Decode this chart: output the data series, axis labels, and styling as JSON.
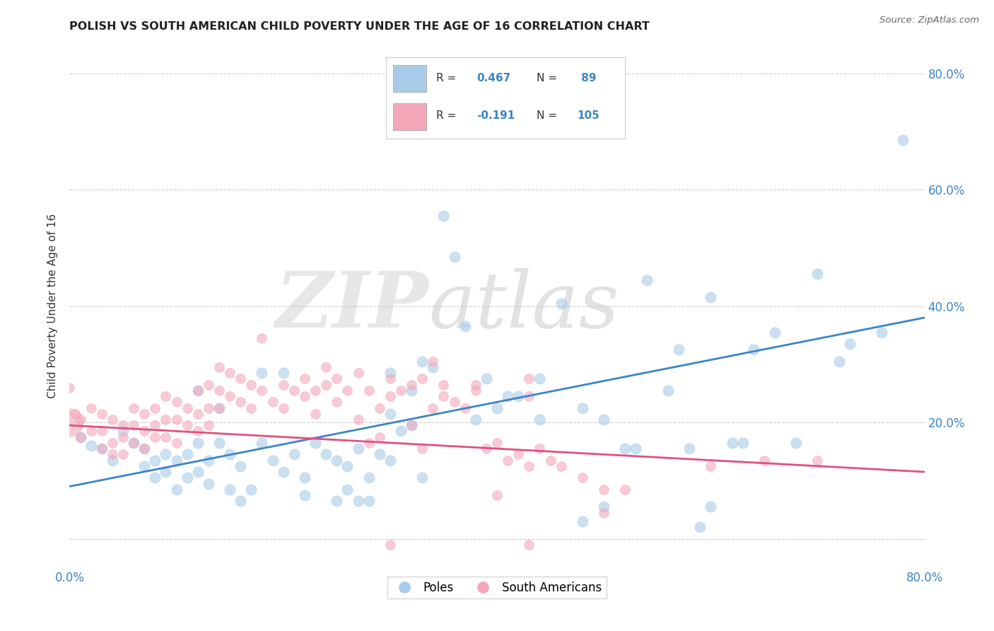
{
  "title": "POLISH VS SOUTH AMERICAN CHILD POVERTY UNDER THE AGE OF 16 CORRELATION CHART",
  "source": "Source: ZipAtlas.com",
  "ylabel": "Child Poverty Under the Age of 16",
  "xlim": [
    0.0,
    0.8
  ],
  "ylim": [
    -0.05,
    0.85
  ],
  "yticks": [
    0.0,
    0.2,
    0.4,
    0.6,
    0.8
  ],
  "xticks": [
    0.0,
    0.1,
    0.2,
    0.3,
    0.4,
    0.5,
    0.6,
    0.7,
    0.8
  ],
  "blue_color": "#a8cce8",
  "pink_color": "#f4a7b9",
  "blue_line_color": "#3a85c7",
  "pink_line_color": "#e05080",
  "legend_text_color": "#3a85c7",
  "poles_label": "Poles",
  "sa_label": "South Americans",
  "watermark_zip": "ZIP",
  "watermark_atlas": "atlas",
  "blue_trend_y0": 0.09,
  "blue_trend_y1": 0.38,
  "pink_trend_y0": 0.195,
  "pink_trend_y1": 0.115,
  "blue_dots": [
    [
      0.01,
      0.175
    ],
    [
      0.02,
      0.16
    ],
    [
      0.03,
      0.155
    ],
    [
      0.04,
      0.135
    ],
    [
      0.05,
      0.185
    ],
    [
      0.06,
      0.165
    ],
    [
      0.07,
      0.155
    ],
    [
      0.07,
      0.125
    ],
    [
      0.08,
      0.135
    ],
    [
      0.08,
      0.105
    ],
    [
      0.09,
      0.145
    ],
    [
      0.09,
      0.115
    ],
    [
      0.1,
      0.135
    ],
    [
      0.1,
      0.085
    ],
    [
      0.11,
      0.145
    ],
    [
      0.11,
      0.105
    ],
    [
      0.12,
      0.165
    ],
    [
      0.12,
      0.115
    ],
    [
      0.12,
      0.255
    ],
    [
      0.13,
      0.135
    ],
    [
      0.13,
      0.095
    ],
    [
      0.14,
      0.225
    ],
    [
      0.14,
      0.165
    ],
    [
      0.15,
      0.145
    ],
    [
      0.15,
      0.085
    ],
    [
      0.16,
      0.125
    ],
    [
      0.16,
      0.065
    ],
    [
      0.17,
      0.085
    ],
    [
      0.18,
      0.165
    ],
    [
      0.18,
      0.285
    ],
    [
      0.19,
      0.135
    ],
    [
      0.2,
      0.285
    ],
    [
      0.2,
      0.115
    ],
    [
      0.21,
      0.145
    ],
    [
      0.22,
      0.105
    ],
    [
      0.22,
      0.075
    ],
    [
      0.23,
      0.165
    ],
    [
      0.24,
      0.145
    ],
    [
      0.25,
      0.135
    ],
    [
      0.25,
      0.065
    ],
    [
      0.26,
      0.125
    ],
    [
      0.26,
      0.085
    ],
    [
      0.27,
      0.155
    ],
    [
      0.27,
      0.065
    ],
    [
      0.28,
      0.105
    ],
    [
      0.28,
      0.065
    ],
    [
      0.29,
      0.145
    ],
    [
      0.3,
      0.285
    ],
    [
      0.3,
      0.215
    ],
    [
      0.3,
      0.135
    ],
    [
      0.31,
      0.185
    ],
    [
      0.32,
      0.255
    ],
    [
      0.32,
      0.195
    ],
    [
      0.33,
      0.305
    ],
    [
      0.33,
      0.105
    ],
    [
      0.34,
      0.295
    ],
    [
      0.35,
      0.555
    ],
    [
      0.36,
      0.485
    ],
    [
      0.37,
      0.365
    ],
    [
      0.38,
      0.205
    ],
    [
      0.39,
      0.275
    ],
    [
      0.4,
      0.225
    ],
    [
      0.41,
      0.245
    ],
    [
      0.42,
      0.245
    ],
    [
      0.44,
      0.205
    ],
    [
      0.44,
      0.275
    ],
    [
      0.46,
      0.405
    ],
    [
      0.48,
      0.225
    ],
    [
      0.5,
      0.205
    ],
    [
      0.52,
      0.155
    ],
    [
      0.53,
      0.155
    ],
    [
      0.54,
      0.445
    ],
    [
      0.56,
      0.255
    ],
    [
      0.57,
      0.325
    ],
    [
      0.58,
      0.155
    ],
    [
      0.6,
      0.415
    ],
    [
      0.62,
      0.165
    ],
    [
      0.63,
      0.165
    ],
    [
      0.64,
      0.325
    ],
    [
      0.66,
      0.355
    ],
    [
      0.68,
      0.165
    ],
    [
      0.7,
      0.455
    ],
    [
      0.72,
      0.305
    ],
    [
      0.73,
      0.335
    ],
    [
      0.76,
      0.355
    ],
    [
      0.78,
      0.685
    ],
    [
      0.59,
      0.02
    ],
    [
      0.6,
      0.055
    ],
    [
      0.5,
      0.055
    ],
    [
      0.48,
      0.03
    ]
  ],
  "pink_dots": [
    [
      0.0,
      0.26
    ],
    [
      0.005,
      0.215
    ],
    [
      0.01,
      0.205
    ],
    [
      0.01,
      0.175
    ],
    [
      0.02,
      0.185
    ],
    [
      0.02,
      0.225
    ],
    [
      0.03,
      0.215
    ],
    [
      0.03,
      0.185
    ],
    [
      0.03,
      0.155
    ],
    [
      0.04,
      0.205
    ],
    [
      0.04,
      0.165
    ],
    [
      0.04,
      0.145
    ],
    [
      0.05,
      0.195
    ],
    [
      0.05,
      0.175
    ],
    [
      0.05,
      0.145
    ],
    [
      0.06,
      0.225
    ],
    [
      0.06,
      0.195
    ],
    [
      0.06,
      0.165
    ],
    [
      0.07,
      0.215
    ],
    [
      0.07,
      0.185
    ],
    [
      0.07,
      0.155
    ],
    [
      0.08,
      0.225
    ],
    [
      0.08,
      0.195
    ],
    [
      0.08,
      0.175
    ],
    [
      0.09,
      0.245
    ],
    [
      0.09,
      0.205
    ],
    [
      0.09,
      0.175
    ],
    [
      0.1,
      0.235
    ],
    [
      0.1,
      0.205
    ],
    [
      0.1,
      0.165
    ],
    [
      0.11,
      0.225
    ],
    [
      0.11,
      0.195
    ],
    [
      0.12,
      0.255
    ],
    [
      0.12,
      0.215
    ],
    [
      0.12,
      0.185
    ],
    [
      0.13,
      0.265
    ],
    [
      0.13,
      0.225
    ],
    [
      0.13,
      0.195
    ],
    [
      0.14,
      0.295
    ],
    [
      0.14,
      0.255
    ],
    [
      0.14,
      0.225
    ],
    [
      0.15,
      0.285
    ],
    [
      0.15,
      0.245
    ],
    [
      0.16,
      0.275
    ],
    [
      0.16,
      0.235
    ],
    [
      0.17,
      0.265
    ],
    [
      0.17,
      0.225
    ],
    [
      0.18,
      0.345
    ],
    [
      0.18,
      0.255
    ],
    [
      0.19,
      0.235
    ],
    [
      0.2,
      0.265
    ],
    [
      0.2,
      0.225
    ],
    [
      0.21,
      0.255
    ],
    [
      0.22,
      0.245
    ],
    [
      0.22,
      0.275
    ],
    [
      0.23,
      0.255
    ],
    [
      0.23,
      0.215
    ],
    [
      0.24,
      0.265
    ],
    [
      0.24,
      0.295
    ],
    [
      0.25,
      0.275
    ],
    [
      0.25,
      0.235
    ],
    [
      0.26,
      0.255
    ],
    [
      0.27,
      0.285
    ],
    [
      0.27,
      0.205
    ],
    [
      0.28,
      0.255
    ],
    [
      0.28,
      0.165
    ],
    [
      0.29,
      0.225
    ],
    [
      0.29,
      0.175
    ],
    [
      0.3,
      0.275
    ],
    [
      0.3,
      0.245
    ],
    [
      0.31,
      0.255
    ],
    [
      0.32,
      0.265
    ],
    [
      0.32,
      0.195
    ],
    [
      0.33,
      0.275
    ],
    [
      0.33,
      0.155
    ],
    [
      0.34,
      0.305
    ],
    [
      0.34,
      0.225
    ],
    [
      0.35,
      0.245
    ],
    [
      0.35,
      0.265
    ],
    [
      0.36,
      0.235
    ],
    [
      0.37,
      0.225
    ],
    [
      0.38,
      0.255
    ],
    [
      0.38,
      0.265
    ],
    [
      0.39,
      0.155
    ],
    [
      0.4,
      0.165
    ],
    [
      0.4,
      0.075
    ],
    [
      0.41,
      0.135
    ],
    [
      0.42,
      0.145
    ],
    [
      0.43,
      0.125
    ],
    [
      0.43,
      0.275
    ],
    [
      0.43,
      0.245
    ],
    [
      0.44,
      0.155
    ],
    [
      0.45,
      0.135
    ],
    [
      0.46,
      0.125
    ],
    [
      0.48,
      0.105
    ],
    [
      0.5,
      0.085
    ],
    [
      0.5,
      0.045
    ],
    [
      0.52,
      0.085
    ],
    [
      0.6,
      0.125
    ],
    [
      0.65,
      0.135
    ],
    [
      0.7,
      0.135
    ],
    [
      0.3,
      -0.01
    ],
    [
      0.43,
      -0.01
    ]
  ],
  "pink_big_dot": [
    0.0,
    0.2
  ],
  "pink_big_dot_size": 800,
  "blue_dot_size": 120,
  "pink_dot_size": 100
}
